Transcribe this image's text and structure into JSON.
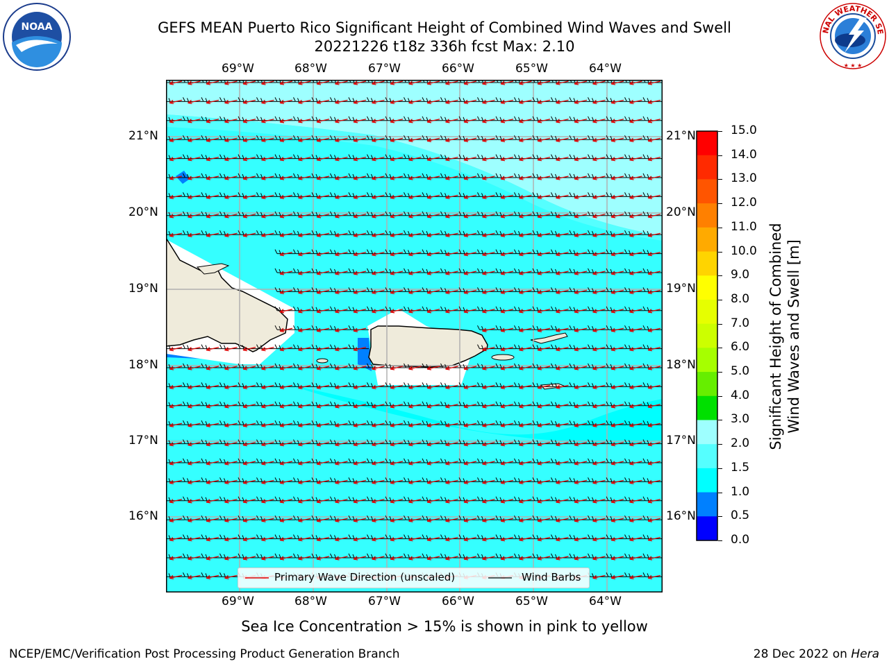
{
  "header": {
    "title_line1": "GEFS MEAN Puerto Rico Significant Height of Combined Wind Waves and Swell",
    "title_line2": "20221226 t18z 336h fcst   Max: 2.10"
  },
  "logos": {
    "left": {
      "name": "noaa-logo",
      "text": "NOAA",
      "ring_text": "NATIONAL OCEANIC AND ATMOSPHERIC ADMINISTRATION · U.S. DEPARTMENT OF COMMERCE"
    },
    "right": {
      "name": "nws-logo",
      "ring_text": "NATIONAL WEATHER SERVICE"
    }
  },
  "map": {
    "lon_labels": [
      "69°W",
      "68°W",
      "67°W",
      "66°W",
      "65°W",
      "64°W"
    ],
    "lat_labels": [
      "21°N",
      "20°N",
      "19°N",
      "18°N",
      "17°N",
      "16°N"
    ],
    "background_color": "#35ffff",
    "land_color": "#efebdb"
  },
  "legend": {
    "wave_direction": "Primary Wave Direction (unscaled)",
    "wind_barbs": "Wind Barbs",
    "wave_color": "#e00000",
    "barb_color": "#000000"
  },
  "colorbar": {
    "label_line1": "Significant Height of Combined",
    "label_line2": "Wind Waves and Swell [m]",
    "ticks": [
      "15.0",
      "14.0",
      "13.0",
      "12.0",
      "11.0",
      "10.0",
      "9.0",
      "8.0",
      "7.0",
      "6.0",
      "5.0",
      "4.0",
      "3.0",
      "2.0",
      "1.5",
      "1.0",
      "0.5",
      "0.0"
    ],
    "colors_top_to_bottom": [
      "#ff0000",
      "#ff2a00",
      "#ff5500",
      "#ff8000",
      "#ffaa00",
      "#ffd400",
      "#ffff00",
      "#e6ff00",
      "#ccff00",
      "#a6ff00",
      "#66ee00",
      "#00e000",
      "#00d84a",
      "#55ee88",
      "#9effff",
      "#55ffff",
      "#00ffff",
      "#0080ff",
      "#0000ff"
    ]
  },
  "bottom": {
    "sea_ice_note": "Sea Ice Concentration > 15% is shown in pink to yellow",
    "branch": "NCEP/EMC/Verification Post Processing Product Generation Branch",
    "date_prefix": "28 Dec 2022 on ",
    "host": "Hera"
  }
}
